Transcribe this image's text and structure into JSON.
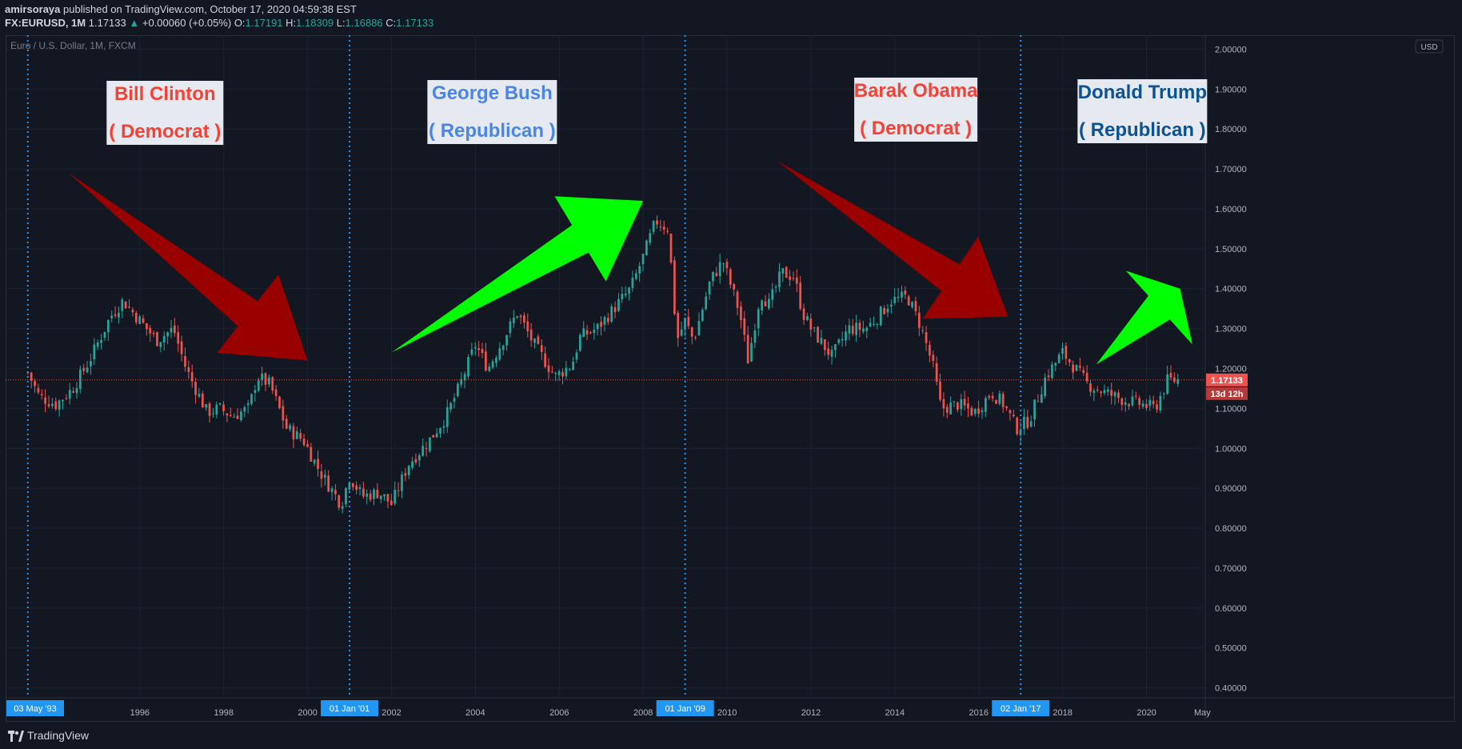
{
  "header": {
    "author": "amirsoraya",
    "published_text": "published on TradingView.com, October 17, 2020 04:59:38 EST",
    "symbol": "FX:EURUSD, 1M",
    "last": "1.17133",
    "change": "+0.00060 (+0.05%)",
    "change_arrow": "▲",
    "open_label": "O:",
    "open": "1.17191",
    "high_label": "H:",
    "high": "1.18309",
    "low_label": "L:",
    "low": "1.16886",
    "close_label": "C:",
    "close": "1.17133"
  },
  "footer": {
    "brand": "TradingView"
  },
  "chart_data": {
    "type": "candlestick",
    "title": "Euro / U.S. Dollar, 1M, FXCM",
    "currency_badge": "USD",
    "ylim": [
      0.4,
      2.0
    ],
    "y_ticks": [
      "2.00000",
      "1.90000",
      "1.80000",
      "1.70000",
      "1.60000",
      "1.50000",
      "1.40000",
      "1.30000",
      "1.20000",
      "1.10000",
      "1.00000",
      "0.90000",
      "0.80000",
      "0.70000",
      "0.60000",
      "0.50000",
      "0.40000"
    ],
    "y_tick_values": [
      2.0,
      1.9,
      1.8,
      1.7,
      1.6,
      1.5,
      1.4,
      1.3,
      1.2,
      1.1,
      1.0,
      0.9,
      0.8,
      0.7,
      0.6,
      0.5,
      0.4
    ],
    "x_ticks": [
      {
        "label": "1996",
        "t": 1996.0
      },
      {
        "label": "1998",
        "t": 1998.0
      },
      {
        "label": "2000",
        "t": 2000.0
      },
      {
        "label": "2002",
        "t": 2002.0
      },
      {
        "label": "2004",
        "t": 2004.0
      },
      {
        "label": "2006",
        "t": 2006.0
      },
      {
        "label": "2008",
        "t": 2008.0
      },
      {
        "label": "2010",
        "t": 2010.0
      },
      {
        "label": "2012",
        "t": 2012.0
      },
      {
        "label": "2014",
        "t": 2014.0
      },
      {
        "label": "2016",
        "t": 2016.0
      },
      {
        "label": "2018",
        "t": 2018.0
      },
      {
        "label": "2020",
        "t": 2020.0
      },
      {
        "label": "May",
        "t": 2021.33
      }
    ],
    "x_range": [
      1992.8,
      2021.4
    ],
    "vertical_markers": [
      {
        "label": "03 May '93",
        "t": 1993.33
      },
      {
        "label": "01 Jan '01",
        "t": 2001.0
      },
      {
        "label": "01 Jan '09",
        "t": 2009.0
      },
      {
        "label": "02 Jan '17",
        "t": 2017.0
      }
    ],
    "last_price": {
      "value": 1.17133,
      "label": "1.17133",
      "countdown": "13d 12h"
    },
    "colors": {
      "up": "#26a69a",
      "down": "#ef5350",
      "marker": "#2196f3",
      "background": "#131722",
      "grid": "#1e2230"
    },
    "annotations": [
      {
        "name": "Bill Clinton",
        "party": "( Democrat )",
        "name_color": "#f44336",
        "party_color": "#f44336",
        "box": "light"
      },
      {
        "name": "George Bush",
        "party": "( Republican )",
        "name_color": "#4a86e8",
        "party_color": "#4a86e8",
        "box": "light"
      },
      {
        "name": "Barak Obama",
        "party": "( Democrat )",
        "name_color": "#f44336",
        "party_color": "#f44336",
        "box": "light"
      },
      {
        "name": "Donald Trump",
        "party": "( Republican )",
        "name_color": "#0b5394",
        "party_color": "#0b5394",
        "box": "light"
      }
    ],
    "arrows": [
      {
        "direction": "down",
        "color": "#990000",
        "from": {
          "t": 1994.3,
          "v": 1.69
        },
        "to": {
          "t": 2000.0,
          "v": 1.22
        }
      },
      {
        "direction": "up",
        "color": "#00ff00",
        "from": {
          "t": 2002.0,
          "v": 1.24
        },
        "to": {
          "t": 2008.0,
          "v": 1.62
        }
      },
      {
        "direction": "down",
        "color": "#990000",
        "from": {
          "t": 2011.2,
          "v": 1.72
        },
        "to": {
          "t": 2016.7,
          "v": 1.33
        }
      },
      {
        "direction": "up",
        "color": "#00ff00",
        "from": {
          "t": 2018.8,
          "v": 1.21
        },
        "to": {
          "t": 2020.8,
          "v": 1.4
        }
      }
    ],
    "closes_anchor": [
      [
        1993.33,
        1.19
      ],
      [
        1993.6,
        1.13
      ],
      [
        1994.0,
        1.11
      ],
      [
        1994.4,
        1.15
      ],
      [
        1994.8,
        1.22
      ],
      [
        1995.3,
        1.33
      ],
      [
        1995.6,
        1.37
      ],
      [
        1996.0,
        1.32
      ],
      [
        1996.4,
        1.27
      ],
      [
        1996.8,
        1.3
      ],
      [
        1997.1,
        1.2
      ],
      [
        1997.6,
        1.09
      ],
      [
        1997.9,
        1.1
      ],
      [
        1998.2,
        1.08
      ],
      [
        1998.6,
        1.1
      ],
      [
        1998.8,
        1.18
      ],
      [
        1999.1,
        1.16
      ],
      [
        1999.5,
        1.05
      ],
      [
        1999.9,
        1.02
      ],
      [
        2000.3,
        0.94
      ],
      [
        2000.8,
        0.86
      ],
      [
        2001.0,
        0.93
      ],
      [
        2001.3,
        0.88
      ],
      [
        2001.7,
        0.89
      ],
      [
        2002.0,
        0.86
      ],
      [
        2002.4,
        0.96
      ],
      [
        2002.9,
        1.02
      ],
      [
        2003.3,
        1.08
      ],
      [
        2003.6,
        1.15
      ],
      [
        2004.0,
        1.26
      ],
      [
        2004.3,
        1.2
      ],
      [
        2004.8,
        1.3
      ],
      [
        2005.0,
        1.34
      ],
      [
        2005.4,
        1.26
      ],
      [
        2005.9,
        1.18
      ],
      [
        2006.3,
        1.21
      ],
      [
        2006.5,
        1.28
      ],
      [
        2006.9,
        1.3
      ],
      [
        2007.3,
        1.35
      ],
      [
        2007.7,
        1.4
      ],
      [
        2008.0,
        1.48
      ],
      [
        2008.3,
        1.57
      ],
      [
        2008.6,
        1.55
      ],
      [
        2008.8,
        1.27
      ],
      [
        2009.0,
        1.32
      ],
      [
        2009.2,
        1.27
      ],
      [
        2009.6,
        1.42
      ],
      [
        2009.9,
        1.47
      ],
      [
        2010.3,
        1.34
      ],
      [
        2010.5,
        1.22
      ],
      [
        2010.8,
        1.39
      ],
      [
        2011.0,
        1.36
      ],
      [
        2011.3,
        1.44
      ],
      [
        2011.6,
        1.43
      ],
      [
        2011.8,
        1.34
      ],
      [
        2012.0,
        1.3
      ],
      [
        2012.5,
        1.23
      ],
      [
        2012.9,
        1.3
      ],
      [
        2013.3,
        1.3
      ],
      [
        2013.6,
        1.33
      ],
      [
        2013.9,
        1.37
      ],
      [
        2014.3,
        1.38
      ],
      [
        2014.6,
        1.31
      ],
      [
        2014.9,
        1.21
      ],
      [
        2015.1,
        1.1
      ],
      [
        2015.5,
        1.11
      ],
      [
        2015.9,
        1.09
      ],
      [
        2016.3,
        1.14
      ],
      [
        2016.6,
        1.11
      ],
      [
        2016.9,
        1.05
      ],
      [
        2017.2,
        1.07
      ],
      [
        2017.6,
        1.18
      ],
      [
        2018.0,
        1.24
      ],
      [
        2018.3,
        1.2
      ],
      [
        2018.6,
        1.16
      ],
      [
        2019.0,
        1.14
      ],
      [
        2019.5,
        1.12
      ],
      [
        2019.9,
        1.11
      ],
      [
        2020.2,
        1.1
      ],
      [
        2020.5,
        1.17
      ],
      [
        2020.8,
        1.17133
      ]
    ]
  }
}
